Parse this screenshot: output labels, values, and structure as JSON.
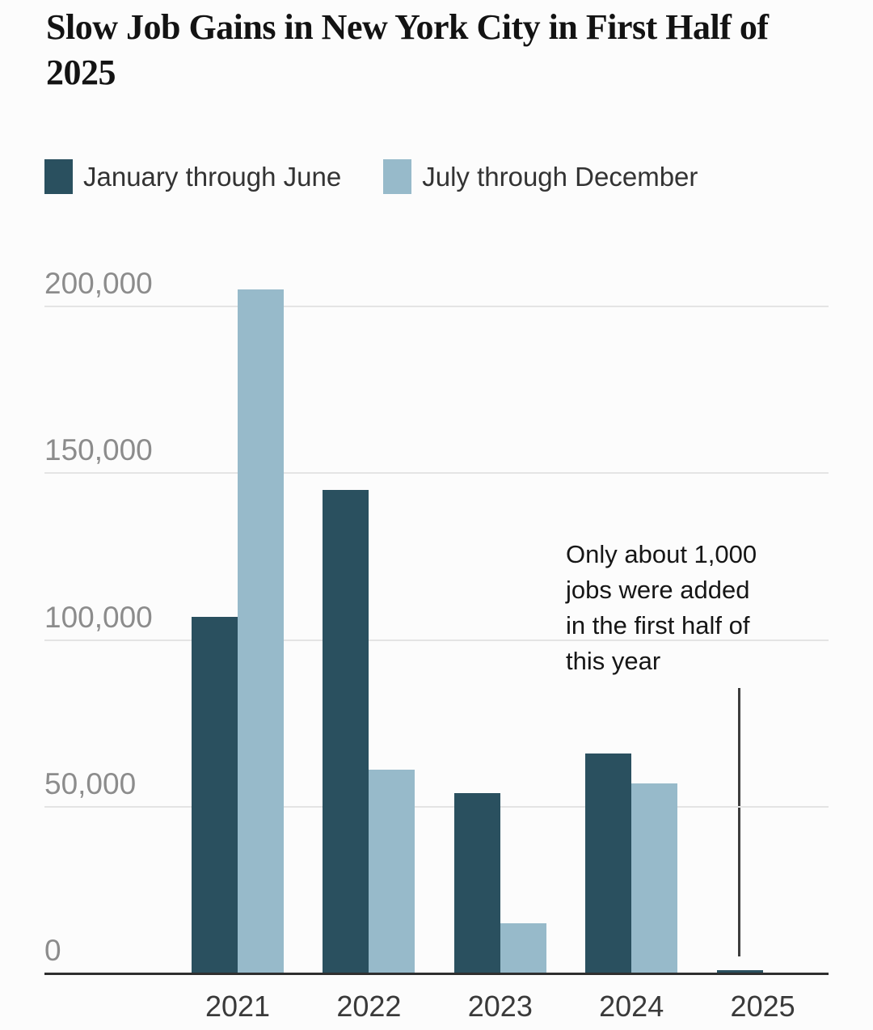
{
  "title": "Slow Job Gains in New York City in First Half of 2025",
  "legend": {
    "items": [
      {
        "label": "January through June",
        "color": "#2A505F"
      },
      {
        "label": "July through December",
        "color": "#97BACA"
      }
    ]
  },
  "annotation": {
    "lines": [
      "Only about 1,000",
      "jobs were added",
      "in the first half of",
      "this year"
    ]
  },
  "chart_data": {
    "type": "bar",
    "title": "Slow Job Gains in New York City in First Half of 2025",
    "categories": [
      "2021",
      "2022",
      "2023",
      "2024",
      "2025"
    ],
    "series": [
      {
        "name": "January through June",
        "color": "#2A505F",
        "values": [
          107000,
          145000,
          54000,
          66000,
          1000
        ]
      },
      {
        "name": "July through December",
        "color": "#97BACA",
        "values": [
          205000,
          61000,
          15000,
          57000,
          null
        ]
      }
    ],
    "y_ticks": [
      {
        "value": 200000,
        "label": "200,000"
      },
      {
        "value": 150000,
        "label": "150,000"
      },
      {
        "value": 100000,
        "label": "100,000"
      },
      {
        "value": 50000,
        "label": "50,000"
      },
      {
        "value": 0,
        "label": "0"
      }
    ],
    "ylim": [
      0,
      205000
    ],
    "xlabel": "",
    "ylabel": "",
    "grid": "horizontal",
    "legend_position": "top-left",
    "annotation": "Only about 1,000 jobs were added in the first half of this year"
  }
}
